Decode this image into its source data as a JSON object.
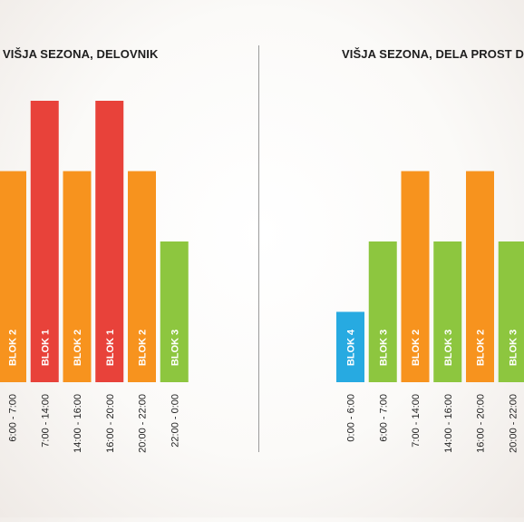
{
  "colors": {
    "blok1": "#e8423a",
    "blok2": "#f7931e",
    "blok3": "#8dc63f",
    "blok4": "#27aae1",
    "label_text": "#ffffff",
    "tick_text": "#222222"
  },
  "chart_data": [
    {
      "type": "bar",
      "title": "VIŠJA SEZONA, DELOVNIK",
      "categories": [
        "6:00 - 7:00",
        "7:00 - 14:00",
        "14:00 - 16:00",
        "16:00 - 20:00",
        "20:00 - 22:00",
        "22:00 - 0:00"
      ],
      "values": [
        3,
        4,
        3,
        4,
        3,
        2
      ],
      "bar_labels": [
        "BLOK 2",
        "BLOK 1",
        "BLOK 2",
        "BLOK 1",
        "BLOK 2",
        "BLOK 3"
      ],
      "ylim": [
        0,
        4
      ],
      "grid": false
    },
    {
      "type": "bar",
      "title": "VIŠJA SEZONA, DELA PROST D",
      "categories": [
        "0:00 - 6:00",
        "6:00 - 7:00",
        "7:00 - 14:00",
        "14:00 - 16:00",
        "16:00 - 20:00",
        "20:00 - 22:00"
      ],
      "values": [
        1,
        2,
        3,
        2,
        3,
        2
      ],
      "bar_labels": [
        "BLOK 4",
        "BLOK 3",
        "BLOK 2",
        "BLOK 3",
        "BLOK 2",
        "BLOK 3"
      ],
      "ylim": [
        0,
        4
      ],
      "grid": false
    }
  ]
}
